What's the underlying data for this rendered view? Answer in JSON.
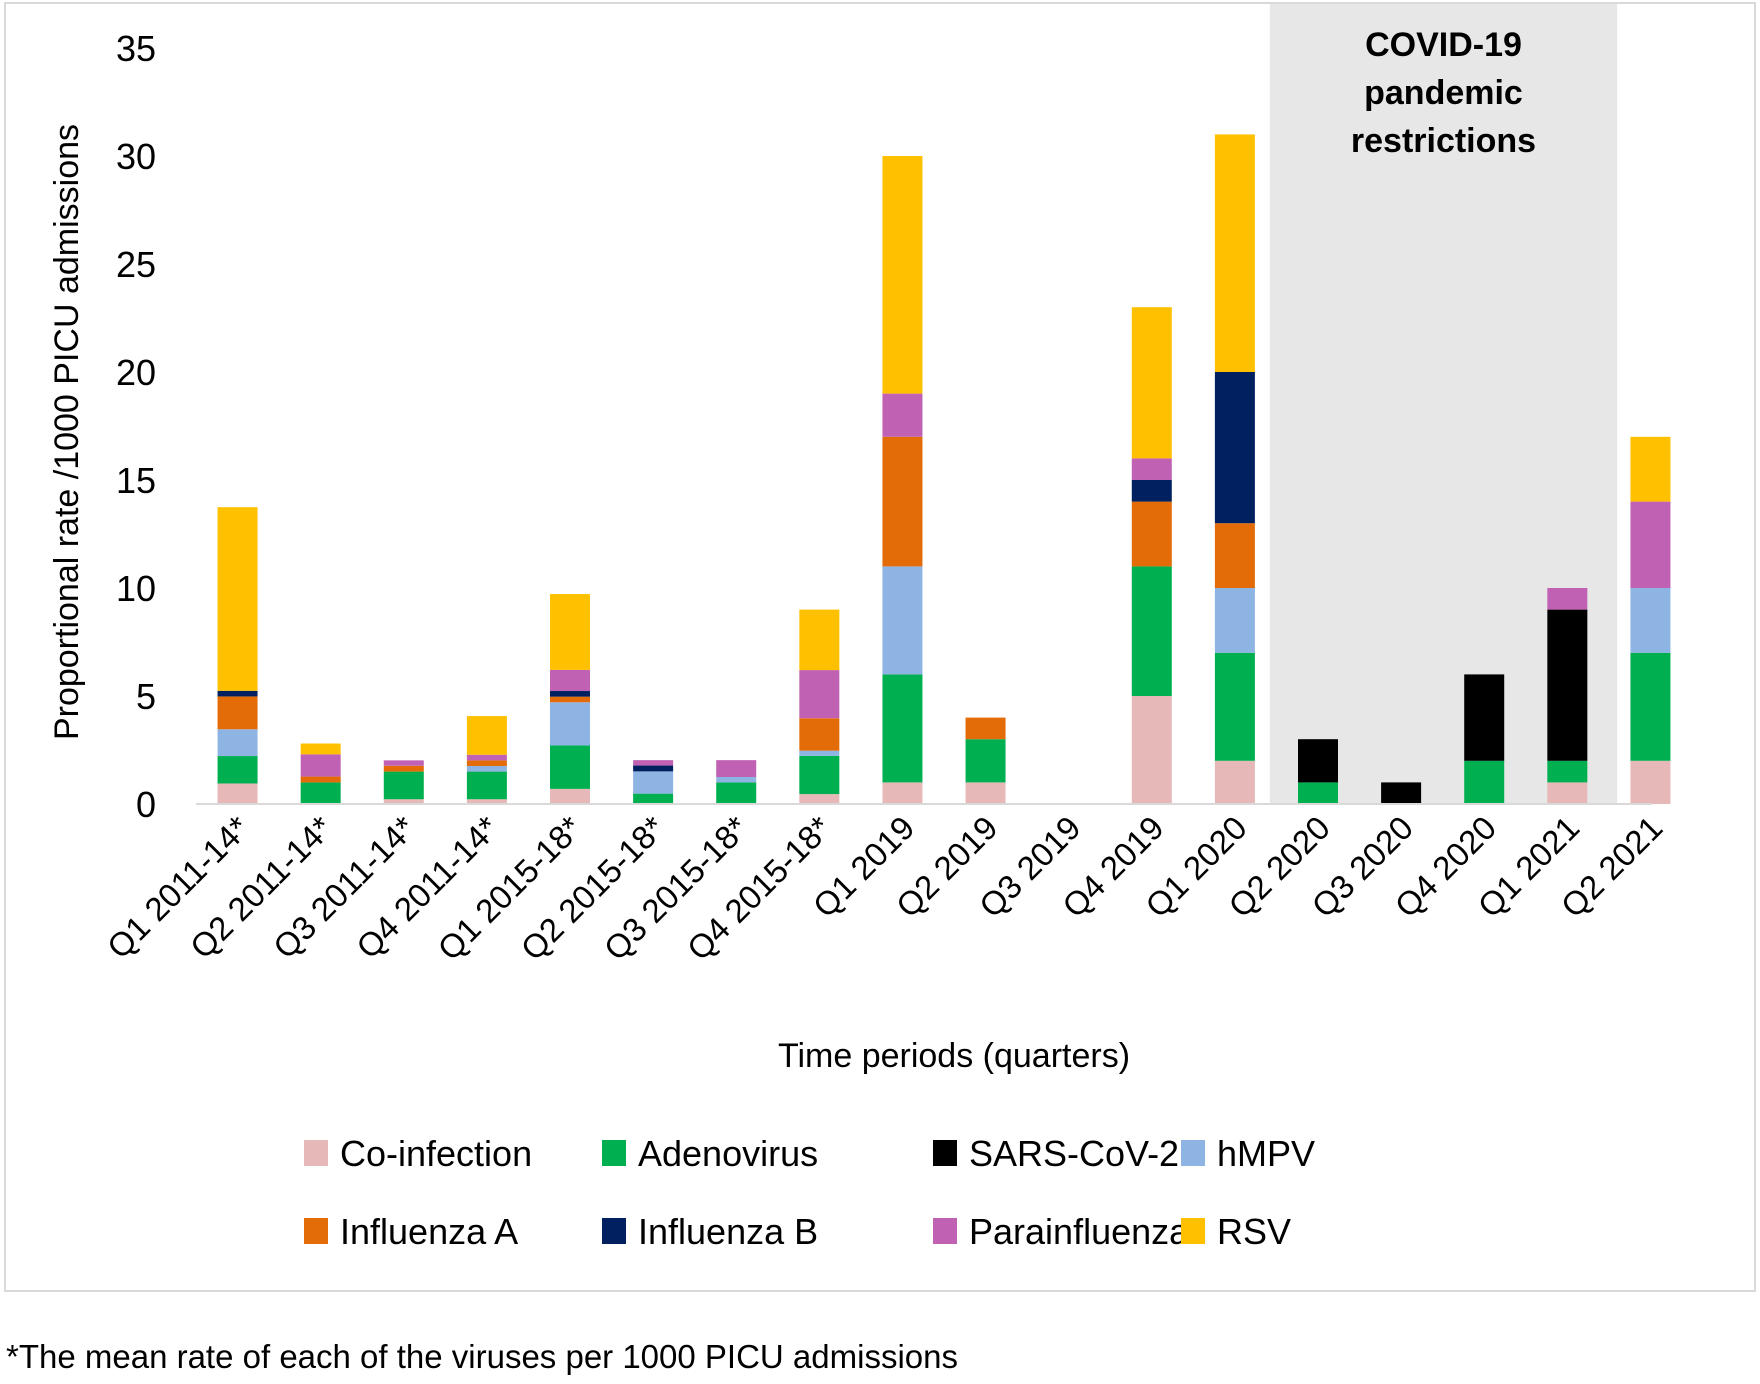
{
  "chart_data": {
    "type": "bar",
    "stacked": true,
    "title": "",
    "xlabel": "Time periods (quarters)",
    "ylabel": "Proportional rate /1000 PICU admissions",
    "ylim": [
      0,
      35
    ],
    "yticks": [
      0,
      5,
      10,
      15,
      20,
      25,
      30,
      35
    ],
    "grid": false,
    "legend_position": "bottom",
    "categories": [
      "Q1 2011-14*",
      "Q2 2011-14*",
      "Q3 2011-14*",
      "Q4 2011-14*",
      "Q1 2015-18*",
      "Q2 2015-18*",
      "Q3 2015-18*",
      "Q4 2015-18*",
      "Q1 2019",
      "Q2 2019",
      "Q3 2019",
      "Q4 2019",
      "Q1 2020",
      "Q2 2020",
      "Q3 2020",
      "Q4 2020",
      "Q1 2021",
      "Q2 2021"
    ],
    "series": [
      {
        "name": "Co-infection",
        "color": "#e6b8b7",
        "values": [
          0.95,
          0,
          0.22,
          0.22,
          0.7,
          0,
          0,
          0.46,
          1,
          1,
          0,
          5,
          2,
          0,
          0,
          0,
          1,
          2
        ]
      },
      {
        "name": "Adenovirus",
        "color": "#00b050",
        "values": [
          1.27,
          1.0,
          1.28,
          1.28,
          2.01,
          0.48,
          1.0,
          1.77,
          5,
          2,
          0,
          6,
          5,
          1,
          0,
          2,
          1,
          5
        ]
      },
      {
        "name": "SARS-CoV-2",
        "color": "#000000",
        "values": [
          0,
          0,
          0,
          0,
          0,
          0,
          0,
          0,
          0,
          0,
          0,
          0,
          0,
          2,
          1,
          4,
          7,
          0
        ]
      },
      {
        "name": "hMPV",
        "color": "#8eb4e3",
        "values": [
          1.24,
          0,
          0,
          0.26,
          2.0,
          1.03,
          0.25,
          0.24,
          5,
          0,
          0,
          0,
          3,
          0,
          0,
          0,
          0,
          3
        ]
      },
      {
        "name": "Influenza A",
        "color": "#e36c09",
        "values": [
          1.52,
          0.27,
          0.27,
          0.26,
          0.26,
          0,
          0,
          1.5,
          6,
          1,
          0,
          3,
          3,
          0,
          0,
          0,
          0,
          0
        ]
      },
      {
        "name": "Influenza B",
        "color": "#002060",
        "values": [
          0.26,
          0,
          0,
          0,
          0.26,
          0.27,
          0,
          0,
          0,
          0,
          0,
          1,
          7,
          0,
          0,
          0,
          0,
          0
        ]
      },
      {
        "name": "Parainfluenza",
        "color": "#c061b3",
        "values": [
          0,
          1.03,
          0.25,
          0.26,
          0.98,
          0.25,
          0.78,
          2.23,
          2,
          0,
          0,
          1,
          0,
          0,
          0,
          0,
          1,
          4
        ]
      },
      {
        "name": "RSV",
        "color": "#ffc000",
        "values": [
          8.5,
          0.5,
          0,
          1.79,
          3.51,
          0,
          0,
          2.8,
          11,
          0,
          0,
          7,
          11,
          0,
          0,
          0,
          0,
          3
        ]
      }
    ],
    "annotations": [
      {
        "type": "shaded_region",
        "from_category": "Q2 2020",
        "to_category": "Q1 2021",
        "color": "#e7e7e7",
        "label_lines": [
          "COVID-19",
          "pandemic",
          "restrictions"
        ]
      }
    ],
    "footnote": "*The mean rate of each of the viruses per 1000 PICU admissions"
  }
}
